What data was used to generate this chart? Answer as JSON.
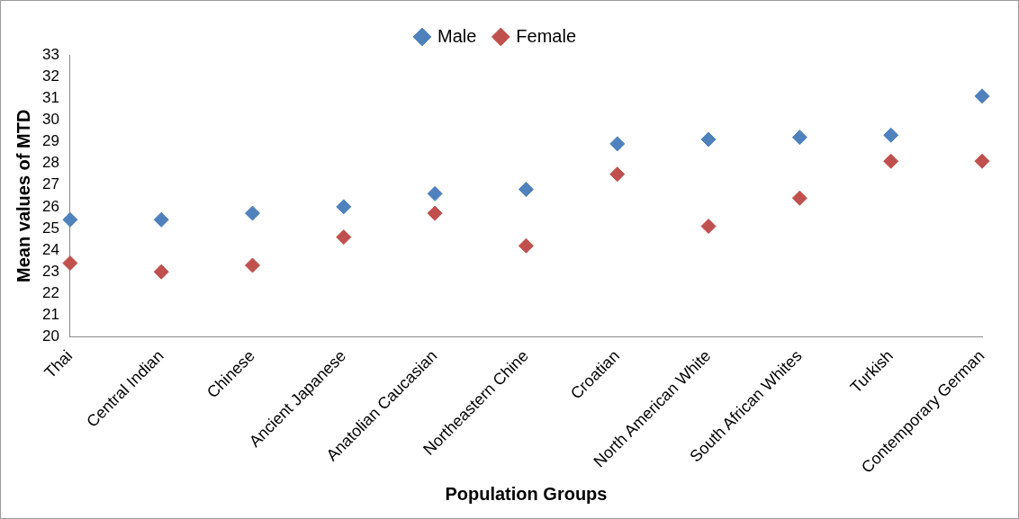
{
  "chart_data": {
    "type": "scatter",
    "xlabel": "Population Groups",
    "ylabel": "Mean values of MTD",
    "categories": [
      "Thai",
      "Central Indian",
      "Chinese",
      "Ancient Japanese",
      "Anatolian Caucasian",
      "Northeastern Chine",
      "Croatian",
      "North American White",
      "South African Whites",
      "Turkish",
      "Contemporary German"
    ],
    "series": [
      {
        "name": "Male",
        "color": "#4f81bd",
        "values": [
          25.4,
          25.4,
          25.7,
          26.0,
          26.6,
          26.8,
          28.9,
          29.1,
          29.2,
          29.3,
          31.1
        ]
      },
      {
        "name": "Female",
        "color": "#c0504d",
        "values": [
          23.4,
          23.0,
          23.3,
          24.6,
          25.7,
          24.2,
          27.5,
          25.1,
          26.4,
          28.1,
          28.1
        ]
      }
    ],
    "ylim": [
      20,
      33
    ],
    "yticks": [
      20,
      21,
      22,
      23,
      24,
      25,
      26,
      27,
      28,
      29,
      30,
      31,
      32,
      33
    ],
    "grid": false,
    "legend": "top",
    "marker": "diamond"
  }
}
